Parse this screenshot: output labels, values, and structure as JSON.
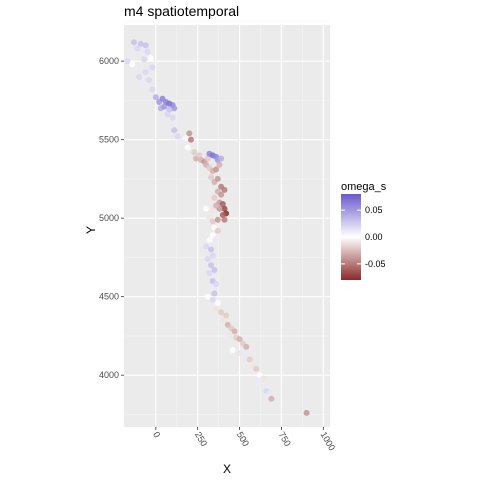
{
  "chart_data": {
    "type": "scatter",
    "title": "m4 spatiotemporal",
    "xlabel": "X",
    "ylabel": "Y",
    "xlim": [
      -190,
      1040
    ],
    "ylim": [
      3670,
      6230
    ],
    "xticks": [
      0,
      250,
      500,
      750,
      1000
    ],
    "xtick_labels": [
      "0",
      "250",
      "500",
      "750",
      "1000"
    ],
    "yticks": [
      4000,
      4500,
      5000,
      5500,
      6000
    ],
    "ytick_labels": [
      "4000",
      "4500",
      "5000",
      "5500",
      "6000"
    ],
    "grid": true,
    "color_scale": {
      "name": "omega_s",
      "range": [
        -0.08,
        0.08
      ],
      "ticks": [
        0.05,
        0.0,
        -0.05
      ],
      "tick_labels": [
        "0.05",
        "0.00",
        "-0.05"
      ],
      "low_color": "#8b2a2a",
      "mid_color": "#ffffff",
      "high_color": "#6a5acd"
    },
    "legend_placement": "right",
    "points": [
      {
        "x": -130,
        "y": 6120,
        "c": 0.03
      },
      {
        "x": -110,
        "y": 6080,
        "c": 0.02
      },
      {
        "x": -90,
        "y": 6110,
        "c": 0.03
      },
      {
        "x": -150,
        "y": 6060,
        "c": 0.01
      },
      {
        "x": -170,
        "y": 6000,
        "c": 0.02
      },
      {
        "x": -140,
        "y": 5980,
        "c": 0.0
      },
      {
        "x": -60,
        "y": 6100,
        "c": 0.03
      },
      {
        "x": -50,
        "y": 6060,
        "c": 0.02
      },
      {
        "x": -70,
        "y": 6010,
        "c": 0.02
      },
      {
        "x": -120,
        "y": 5950,
        "c": 0.01
      },
      {
        "x": -100,
        "y": 5900,
        "c": 0.02
      },
      {
        "x": -60,
        "y": 5930,
        "c": 0.02
      },
      {
        "x": -40,
        "y": 5880,
        "c": 0.02
      },
      {
        "x": -20,
        "y": 5960,
        "c": 0.02
      },
      {
        "x": -30,
        "y": 6020,
        "c": 0.0
      },
      {
        "x": -80,
        "y": 5860,
        "c": 0.01
      },
      {
        "x": -20,
        "y": 5820,
        "c": 0.02
      },
      {
        "x": 0,
        "y": 5770,
        "c": 0.04
      },
      {
        "x": 20,
        "y": 5740,
        "c": 0.05
      },
      {
        "x": 40,
        "y": 5760,
        "c": 0.06
      },
      {
        "x": 60,
        "y": 5740,
        "c": 0.06
      },
      {
        "x": 80,
        "y": 5730,
        "c": 0.07
      },
      {
        "x": 100,
        "y": 5720,
        "c": 0.06
      },
      {
        "x": 110,
        "y": 5700,
        "c": 0.05
      },
      {
        "x": 30,
        "y": 5700,
        "c": 0.04
      },
      {
        "x": 50,
        "y": 5710,
        "c": 0.05
      },
      {
        "x": 80,
        "y": 5690,
        "c": 0.03
      },
      {
        "x": 70,
        "y": 5660,
        "c": 0.02
      },
      {
        "x": 100,
        "y": 5640,
        "c": 0.02
      },
      {
        "x": 120,
        "y": 5610,
        "c": 0.01
      },
      {
        "x": 110,
        "y": 5560,
        "c": 0.03
      },
      {
        "x": 130,
        "y": 5520,
        "c": 0.02
      },
      {
        "x": 150,
        "y": 5490,
        "c": 0.01
      },
      {
        "x": 180,
        "y": 5510,
        "c": 0.0
      },
      {
        "x": 190,
        "y": 5450,
        "c": 0.0
      },
      {
        "x": 200,
        "y": 5540,
        "c": -0.04
      },
      {
        "x": 210,
        "y": 5500,
        "c": -0.05
      },
      {
        "x": 230,
        "y": 5420,
        "c": -0.02
      },
      {
        "x": 240,
        "y": 5380,
        "c": -0.03
      },
      {
        "x": 260,
        "y": 5400,
        "c": -0.02
      },
      {
        "x": 270,
        "y": 5370,
        "c": -0.03
      },
      {
        "x": 290,
        "y": 5360,
        "c": -0.04
      },
      {
        "x": 310,
        "y": 5380,
        "c": -0.02
      },
      {
        "x": 320,
        "y": 5410,
        "c": 0.06
      },
      {
        "x": 340,
        "y": 5400,
        "c": 0.07
      },
      {
        "x": 360,
        "y": 5390,
        "c": 0.06
      },
      {
        "x": 370,
        "y": 5370,
        "c": 0.05
      },
      {
        "x": 390,
        "y": 5380,
        "c": 0.04
      },
      {
        "x": 300,
        "y": 5340,
        "c": -0.03
      },
      {
        "x": 320,
        "y": 5320,
        "c": -0.02
      },
      {
        "x": 340,
        "y": 5300,
        "c": -0.03
      },
      {
        "x": 360,
        "y": 5310,
        "c": -0.04
      },
      {
        "x": 380,
        "y": 5340,
        "c": -0.03
      },
      {
        "x": 330,
        "y": 5260,
        "c": -0.02
      },
      {
        "x": 350,
        "y": 5230,
        "c": -0.03
      },
      {
        "x": 370,
        "y": 5250,
        "c": -0.04
      },
      {
        "x": 390,
        "y": 5200,
        "c": -0.05
      },
      {
        "x": 370,
        "y": 5170,
        "c": -0.03
      },
      {
        "x": 390,
        "y": 5150,
        "c": -0.04
      },
      {
        "x": 410,
        "y": 5180,
        "c": -0.05
      },
      {
        "x": 350,
        "y": 5130,
        "c": -0.02
      },
      {
        "x": 380,
        "y": 5100,
        "c": -0.04
      },
      {
        "x": 400,
        "y": 5090,
        "c": -0.06
      },
      {
        "x": 410,
        "y": 5060,
        "c": -0.07
      },
      {
        "x": 420,
        "y": 5030,
        "c": -0.08
      },
      {
        "x": 400,
        "y": 5020,
        "c": -0.06
      },
      {
        "x": 380,
        "y": 5060,
        "c": -0.04
      },
      {
        "x": 360,
        "y": 5080,
        "c": -0.03
      },
      {
        "x": 340,
        "y": 5050,
        "c": -0.01
      },
      {
        "x": 300,
        "y": 5060,
        "c": 0.0
      },
      {
        "x": 320,
        "y": 5000,
        "c": -0.01
      },
      {
        "x": 340,
        "y": 4980,
        "c": -0.02
      },
      {
        "x": 370,
        "y": 4990,
        "c": -0.04
      },
      {
        "x": 410,
        "y": 4990,
        "c": -0.05
      },
      {
        "x": 350,
        "y": 4940,
        "c": 0.0
      },
      {
        "x": 370,
        "y": 4920,
        "c": -0.02
      },
      {
        "x": 340,
        "y": 4890,
        "c": 0.0
      },
      {
        "x": 360,
        "y": 4870,
        "c": 0.01
      },
      {
        "x": 320,
        "y": 4860,
        "c": 0.0
      },
      {
        "x": 300,
        "y": 4820,
        "c": 0.02
      },
      {
        "x": 330,
        "y": 4800,
        "c": 0.03
      },
      {
        "x": 340,
        "y": 4760,
        "c": 0.02
      },
      {
        "x": 310,
        "y": 4740,
        "c": 0.02
      },
      {
        "x": 330,
        "y": 4700,
        "c": 0.03
      },
      {
        "x": 350,
        "y": 4670,
        "c": 0.03
      },
      {
        "x": 320,
        "y": 4650,
        "c": 0.02
      },
      {
        "x": 340,
        "y": 4600,
        "c": 0.03
      },
      {
        "x": 360,
        "y": 4580,
        "c": 0.02
      },
      {
        "x": 330,
        "y": 4560,
        "c": 0.01
      },
      {
        "x": 350,
        "y": 4520,
        "c": 0.03
      },
      {
        "x": 310,
        "y": 4500,
        "c": 0.0
      },
      {
        "x": 340,
        "y": 4480,
        "c": 0.02
      },
      {
        "x": 370,
        "y": 4460,
        "c": 0.0
      },
      {
        "x": 360,
        "y": 4420,
        "c": -0.01
      },
      {
        "x": 390,
        "y": 4400,
        "c": -0.02
      },
      {
        "x": 420,
        "y": 4380,
        "c": -0.02
      },
      {
        "x": 400,
        "y": 4350,
        "c": -0.01
      },
      {
        "x": 430,
        "y": 4320,
        "c": -0.03
      },
      {
        "x": 450,
        "y": 4300,
        "c": -0.02
      },
      {
        "x": 470,
        "y": 4280,
        "c": -0.03
      },
      {
        "x": 440,
        "y": 4260,
        "c": -0.01
      },
      {
        "x": 480,
        "y": 4240,
        "c": -0.02
      },
      {
        "x": 500,
        "y": 4230,
        "c": -0.03
      },
      {
        "x": 520,
        "y": 4200,
        "c": -0.02
      },
      {
        "x": 540,
        "y": 4180,
        "c": -0.03
      },
      {
        "x": 460,
        "y": 4160,
        "c": 0.0
      },
      {
        "x": 500,
        "y": 4140,
        "c": -0.01
      },
      {
        "x": 530,
        "y": 4120,
        "c": 0.01
      },
      {
        "x": 560,
        "y": 4100,
        "c": -0.02
      },
      {
        "x": 580,
        "y": 4060,
        "c": -0.01
      },
      {
        "x": 600,
        "y": 4040,
        "c": -0.02
      },
      {
        "x": 620,
        "y": 4000,
        "c": 0.0
      },
      {
        "x": 640,
        "y": 3980,
        "c": -0.01
      },
      {
        "x": 610,
        "y": 3960,
        "c": 0.01
      },
      {
        "x": 660,
        "y": 3900,
        "c": 0.02
      },
      {
        "x": 680,
        "y": 3880,
        "c": 0.01
      },
      {
        "x": 690,
        "y": 3850,
        "c": -0.03
      },
      {
        "x": 900,
        "y": 3760,
        "c": -0.04
      }
    ]
  }
}
